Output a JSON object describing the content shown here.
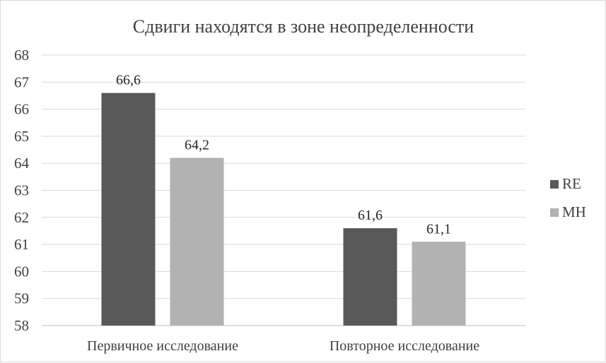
{
  "chart_data": {
    "type": "bar",
    "title": "Сдвиги находятся в зоне неопределенности",
    "xlabel": "",
    "ylabel": "",
    "categories": [
      "Первичное исследование",
      "Повторное исследование"
    ],
    "series": [
      {
        "name": "RE",
        "values": [
          66.6,
          61.6
        ],
        "labels": [
          "66,6",
          "61,6"
        ],
        "color": "#595959"
      },
      {
        "name": "MH",
        "values": [
          64.2,
          61.1
        ],
        "labels": [
          "64,2",
          "61,1"
        ],
        "color": "#b2b2b2"
      }
    ],
    "ylim": [
      58,
      68
    ],
    "yticks": [
      58,
      59,
      60,
      61,
      62,
      63,
      64,
      65,
      66,
      67,
      68
    ],
    "grid": true,
    "gridColor": "#d9d9d9",
    "legend": "right"
  }
}
